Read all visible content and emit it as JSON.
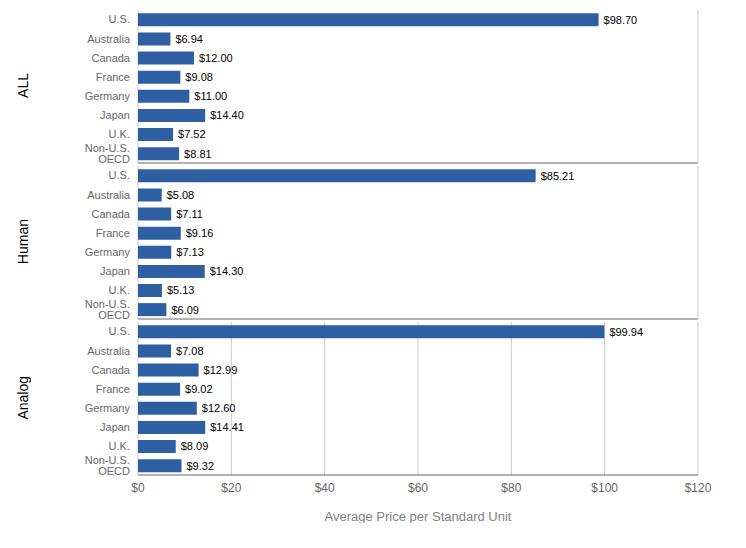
{
  "chart_data": [
    {
      "type": "bar",
      "orientation": "horizontal",
      "title": "ALL",
      "categories": [
        "U.S.",
        "Australia",
        "Canada",
        "France",
        "Germany",
        "Japan",
        "U.K.",
        "Non-U.S. OECD"
      ],
      "values": [
        98.7,
        6.94,
        12.0,
        9.08,
        11.0,
        14.4,
        7.52,
        8.81
      ],
      "value_labels": [
        "$98.70",
        "$6.94",
        "$12.00",
        "$9.08",
        "$11.00",
        "$14.40",
        "$7.52",
        "$8.81"
      ],
      "color": "#2E5FA3",
      "xlim": [
        0,
        120
      ],
      "xticks": [
        0,
        20,
        40,
        60,
        80,
        100,
        120
      ],
      "grid": true,
      "data_labels": true,
      "tick_labels": "y"
    },
    {
      "type": "bar",
      "orientation": "horizontal",
      "title": "Human",
      "categories": [
        "U.S.",
        "Australia",
        "Canada",
        "France",
        "Germany",
        "Japan",
        "U.K.",
        "Non-U.S. OECD"
      ],
      "values": [
        85.21,
        5.08,
        7.11,
        9.16,
        7.13,
        14.3,
        5.13,
        6.09
      ],
      "value_labels": [
        "$85.21",
        "$5.08",
        "$7.11",
        "$9.16",
        "$7.13",
        "$14.30",
        "$5.13",
        "$6.09"
      ],
      "color": "#2E5FA3",
      "xlim": [
        0,
        120
      ],
      "xticks": [
        0,
        20,
        40,
        60,
        80,
        100,
        120
      ],
      "grid": true,
      "data_labels": true,
      "tick_labels": "y"
    },
    {
      "type": "bar",
      "orientation": "horizontal",
      "title": "Analog",
      "categories": [
        "U.S.",
        "Australia",
        "Canada",
        "France",
        "Germany",
        "Japan",
        "U.K.",
        "Non-U.S. OECD"
      ],
      "values": [
        99.94,
        7.08,
        12.99,
        9.02,
        12.6,
        14.41,
        8.09,
        9.32
      ],
      "value_labels": [
        "$99.94",
        "$7.08",
        "$12.99",
        "$9.02",
        "$12.60",
        "$14.41",
        "$8.09",
        "$9.32"
      ],
      "color": "#2E5FA3",
      "xlabel": "Average Price per Standard Unit",
      "xlim": [
        0,
        120
      ],
      "xticks": [
        {
          "value": 0,
          "label": "$0"
        },
        {
          "value": 20,
          "label": "$20"
        },
        {
          "value": 40,
          "label": "$40"
        },
        {
          "value": 60,
          "label": "$60"
        },
        {
          "value": 80,
          "label": "$80"
        },
        {
          "value": 100,
          "label": "$100"
        },
        {
          "value": 120,
          "label": "$120"
        }
      ],
      "grid": true,
      "data_labels": true
    }
  ]
}
